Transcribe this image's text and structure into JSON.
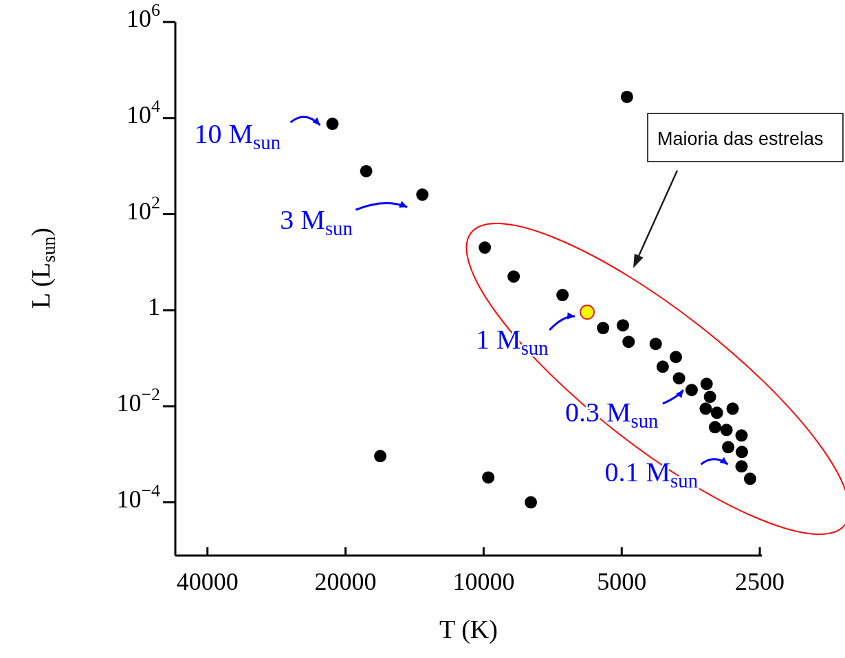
{
  "chart_data": {
    "type": "scatter",
    "xlabel": "T (K)",
    "ylabel": "L (L$_{sun}$)",
    "log": "xy",
    "marker": "circle",
    "xlim": [
      47000,
      2475
    ],
    "ylim": [
      7.8e-06,
      1000000
    ],
    "xticks": [
      40000,
      20000,
      10000,
      5000,
      2500
    ],
    "yticks": [
      {
        "value": 1000000,
        "label": "10$^{6}$"
      },
      {
        "value": 10000,
        "label": "10$^{4}$"
      },
      {
        "value": 100,
        "label": "10$^{2}$"
      },
      1,
      {
        "value": 0.01,
        "label": "10$^{−2}$"
      },
      {
        "value": 0.0001,
        "label": "10$^{−4}$"
      }
    ],
    "series": [
      {
        "color": "#000000",
        "x": [
          21360,
          18030,
          13600,
          4870,
          9940,
          8600,
          6730,
          5490,
          4970,
          4830,
          4215,
          4070,
          3810,
          3750,
          3520,
          3265,
          3210,
          3280,
          3100,
          2865,
          3130,
          2955,
          2740,
          2930,
          2735,
          2740,
          2625,
          16800,
          9770,
          7890
        ],
        "values": [
          7600,
          784,
          255,
          27600,
          20.1,
          5.03,
          2.07,
          0.425,
          0.484,
          0.219,
          0.199,
          0.0668,
          0.106,
          0.0382,
          0.0218,
          0.0293,
          0.0157,
          0.00893,
          0.00733,
          0.00893,
          0.00367,
          0.00321,
          0.00247,
          0.00141,
          0.00112,
          0.00056,
          0.00031,
          0.00092,
          0.00033,
          0.0001
        ]
      },
      {
        "color": "#ffff00",
        "x": [
          5945
        ],
        "values": [
          0.91
        ]
      }
    ],
    "annotations": [
      {
        "text": "10 M$_{sun}$",
        "x": 21360,
        "y": 7600
      },
      {
        "text": "3 M$_{sun}$",
        "x": 13600,
        "y": 255
      },
      {
        "text": "1 M$_{sun}$",
        "x": 5945,
        "y": 0.91
      },
      {
        "text": "0.3 M$_{sun}$",
        "x": 3520,
        "y": 0.0218
      },
      {
        "text": "0.1 M$_{sun}$",
        "x": 2740,
        "y": 0.00056
      },
      "Maioria das estrelas"
    ]
  }
}
